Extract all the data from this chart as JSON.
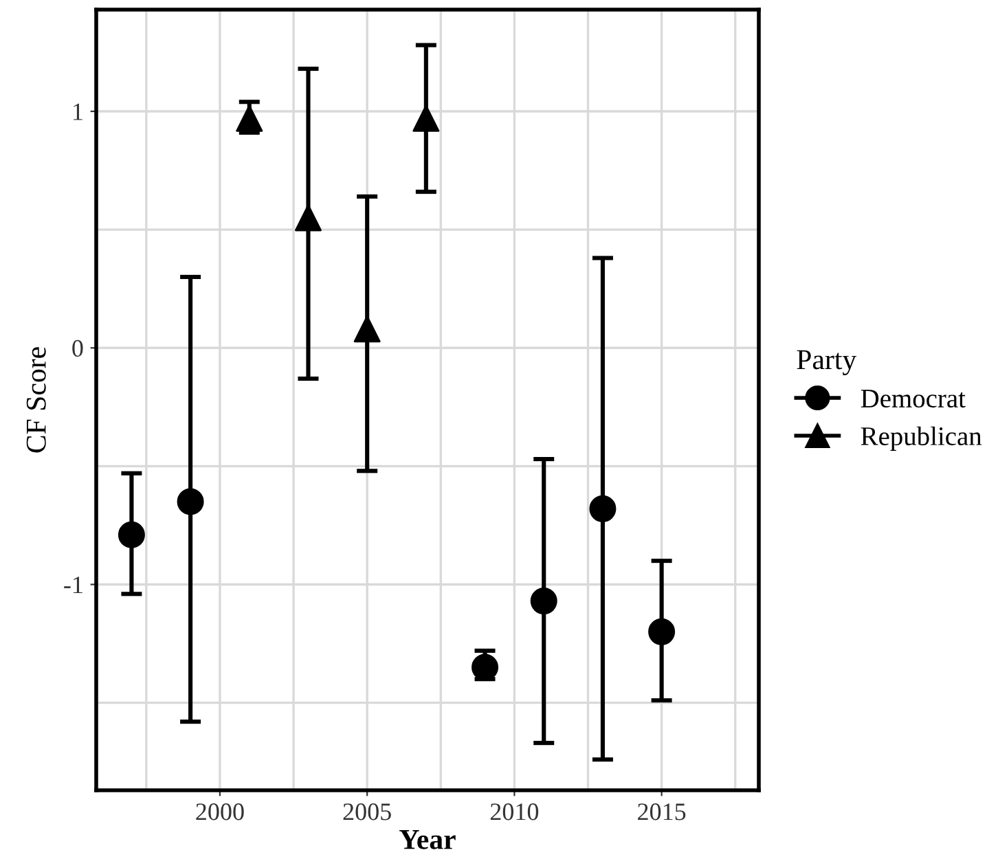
{
  "chart_data": {
    "type": "scatter",
    "xlabel": "Year",
    "ylabel": "CF Score",
    "legend_title": "Party",
    "legend": "right",
    "grid": true,
    "xlim": [
      1995.8,
      2018.3
    ],
    "xticks": [
      2000,
      2005,
      2010,
      2015
    ],
    "ylim": [
      -1.87,
      1.43
    ],
    "yticks": [
      {
        "value": -1,
        "label": "-1"
      },
      0,
      1
    ],
    "series": [
      {
        "name": "Democrat",
        "color": "#000000",
        "marker": "circle",
        "x": [
          1997,
          1999,
          2009,
          2011,
          2013,
          2015
        ],
        "values": [
          -0.79,
          -0.65,
          -1.35,
          -1.07,
          -0.68,
          -1.2
        ],
        "errors": [
          [
            -1.04,
            -0.53
          ],
          [
            -1.58,
            0.3
          ],
          [
            -1.4,
            -1.28
          ],
          [
            -1.67,
            -0.47
          ],
          [
            -1.74,
            0.38
          ],
          [
            -1.49,
            -0.9
          ]
        ]
      },
      {
        "name": "Republican",
        "color": "#000000",
        "marker": "triangle",
        "x": [
          2001,
          2003,
          2005,
          2007
        ],
        "values": [
          0.97,
          0.55,
          0.08,
          0.97
        ],
        "errors": [
          [
            0.91,
            1.04
          ],
          [
            -0.13,
            1.18
          ],
          [
            -0.52,
            0.64
          ],
          [
            0.66,
            1.28
          ]
        ]
      }
    ]
  }
}
